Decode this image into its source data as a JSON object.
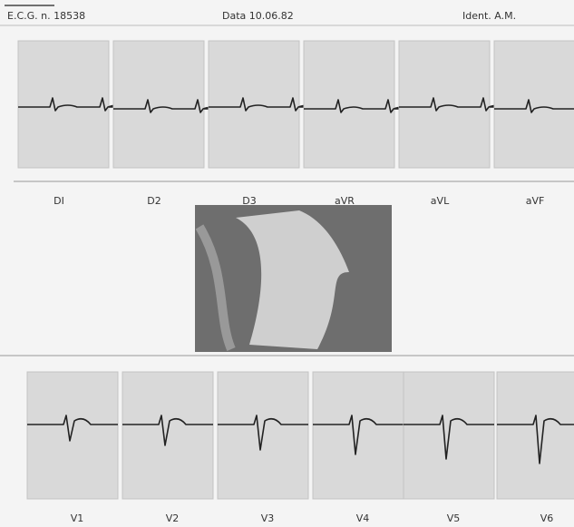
{
  "header": {
    "ecg_number": "E.C.G. n. 18538",
    "date": "Data 10.06.82",
    "ident": "Ident. A.M."
  },
  "limb_leads": [
    "DI",
    "D2",
    "D3",
    "aVR",
    "aVL",
    "aVF"
  ],
  "precordial_leads": [
    "V1",
    "V2",
    "V3",
    "V4",
    "V5",
    "V6"
  ]
}
